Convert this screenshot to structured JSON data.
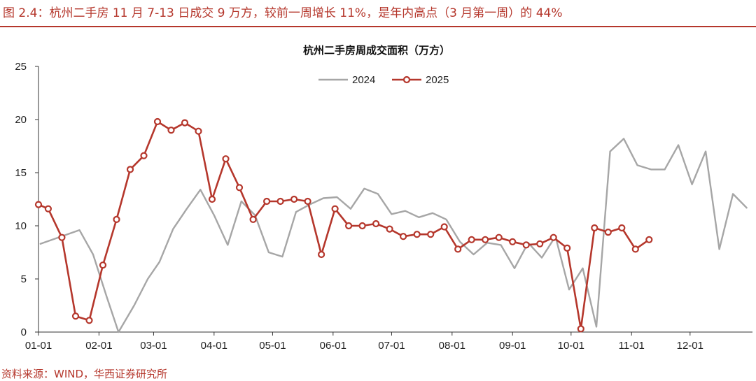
{
  "figure": {
    "title": "图 2.4：杭州二手房 11 月 7-13 日成交 9 万方，较前一周增长 11%，是年内高点（3 月第一周）的 44%",
    "source": "资料来源：WIND，华西证券研究所"
  },
  "colors": {
    "accent": "#b5372c",
    "series_2024": "#a6a6a6",
    "series_2025": "#b5372c"
  },
  "chart_data": {
    "type": "line",
    "title": "杭州二手房周成交面积（万方）",
    "xlabel": "",
    "ylabel": "",
    "ylim": [
      0,
      25
    ],
    "yticks": [
      0,
      5,
      10,
      15,
      20,
      25
    ],
    "xlim": [
      "01-01",
      "12-31"
    ],
    "xticks": [
      "01-01",
      "02-01",
      "03-01",
      "04-01",
      "05-01",
      "06-01",
      "07-01",
      "08-01",
      "09-01",
      "10-01",
      "11-01",
      "12-01"
    ],
    "grid": false,
    "legend": "top-center",
    "series": [
      {
        "name": "2024",
        "marker": "none",
        "points": [
          [
            "01-02",
            8.3
          ],
          [
            "01-22",
            9.6
          ],
          [
            "01-29",
            7.3
          ],
          [
            "02-05",
            3.3
          ],
          [
            "02-11",
            0.0
          ],
          [
            "02-19",
            2.5
          ],
          [
            "02-26",
            5.0
          ],
          [
            "03-04",
            6.6
          ],
          [
            "03-11",
            9.7
          ],
          [
            "03-18",
            11.6
          ],
          [
            "03-25",
            13.4
          ],
          [
            "04-01",
            11.0
          ],
          [
            "04-08",
            8.2
          ],
          [
            "04-15",
            12.3
          ],
          [
            "04-22",
            11.0
          ],
          [
            "04-29",
            7.5
          ],
          [
            "05-06",
            7.1
          ],
          [
            "05-13",
            11.3
          ],
          [
            "05-20",
            12.0
          ],
          [
            "05-27",
            12.6
          ],
          [
            "06-03",
            12.7
          ],
          [
            "06-10",
            11.6
          ],
          [
            "06-17",
            13.5
          ],
          [
            "06-24",
            13.0
          ],
          [
            "07-01",
            11.1
          ],
          [
            "07-08",
            11.4
          ],
          [
            "07-15",
            10.8
          ],
          [
            "07-22",
            11.2
          ],
          [
            "07-29",
            10.6
          ],
          [
            "08-05",
            8.5
          ],
          [
            "08-12",
            7.3
          ],
          [
            "08-19",
            8.4
          ],
          [
            "08-26",
            8.2
          ],
          [
            "09-02",
            6.0
          ],
          [
            "09-09",
            8.4
          ],
          [
            "09-16",
            7.0
          ],
          [
            "09-23",
            9.0
          ],
          [
            "09-30",
            4.0
          ],
          [
            "10-07",
            6.0
          ],
          [
            "10-14",
            0.5
          ],
          [
            "10-21",
            17.0
          ],
          [
            "10-28",
            18.2
          ],
          [
            "11-04",
            15.7
          ],
          [
            "11-11",
            15.3
          ],
          [
            "11-18",
            15.3
          ],
          [
            "11-25",
            17.6
          ],
          [
            "12-02",
            13.9
          ],
          [
            "12-09",
            17.0
          ],
          [
            "12-16",
            7.8
          ],
          [
            "12-23",
            13.0
          ],
          [
            "12-30",
            11.7
          ]
        ]
      },
      {
        "name": "2025",
        "marker": "circle",
        "points": [
          [
            "01-01",
            12.0
          ],
          [
            "01-06",
            11.6
          ],
          [
            "01-13",
            8.9
          ],
          [
            "01-20",
            1.5
          ],
          [
            "01-27",
            1.1
          ],
          [
            "02-03",
            6.3
          ],
          [
            "02-10",
            10.6
          ],
          [
            "02-17",
            15.3
          ],
          [
            "02-24",
            16.6
          ],
          [
            "03-03",
            19.8
          ],
          [
            "03-10",
            19.0
          ],
          [
            "03-17",
            19.7
          ],
          [
            "03-24",
            18.9
          ],
          [
            "03-31",
            12.5
          ],
          [
            "04-07",
            16.3
          ],
          [
            "04-14",
            13.6
          ],
          [
            "04-21",
            10.6
          ],
          [
            "04-28",
            12.3
          ],
          [
            "05-05",
            12.3
          ],
          [
            "05-12",
            12.5
          ],
          [
            "05-19",
            12.3
          ],
          [
            "05-26",
            7.3
          ],
          [
            "06-02",
            11.6
          ],
          [
            "06-09",
            10.0
          ],
          [
            "06-16",
            10.0
          ],
          [
            "06-23",
            10.2
          ],
          [
            "06-30",
            9.7
          ],
          [
            "07-07",
            9.0
          ],
          [
            "07-14",
            9.2
          ],
          [
            "07-21",
            9.2
          ],
          [
            "07-28",
            9.9
          ],
          [
            "08-04",
            7.8
          ],
          [
            "08-11",
            8.7
          ],
          [
            "08-18",
            8.7
          ],
          [
            "08-25",
            8.9
          ],
          [
            "09-01",
            8.5
          ],
          [
            "09-08",
            8.2
          ],
          [
            "09-15",
            8.3
          ],
          [
            "09-22",
            8.9
          ],
          [
            "09-29",
            7.9
          ],
          [
            "10-06",
            0.3
          ],
          [
            "10-13",
            9.8
          ],
          [
            "10-20",
            9.4
          ],
          [
            "10-27",
            9.8
          ],
          [
            "11-03",
            7.8
          ],
          [
            "11-10",
            8.7
          ]
        ]
      }
    ]
  }
}
